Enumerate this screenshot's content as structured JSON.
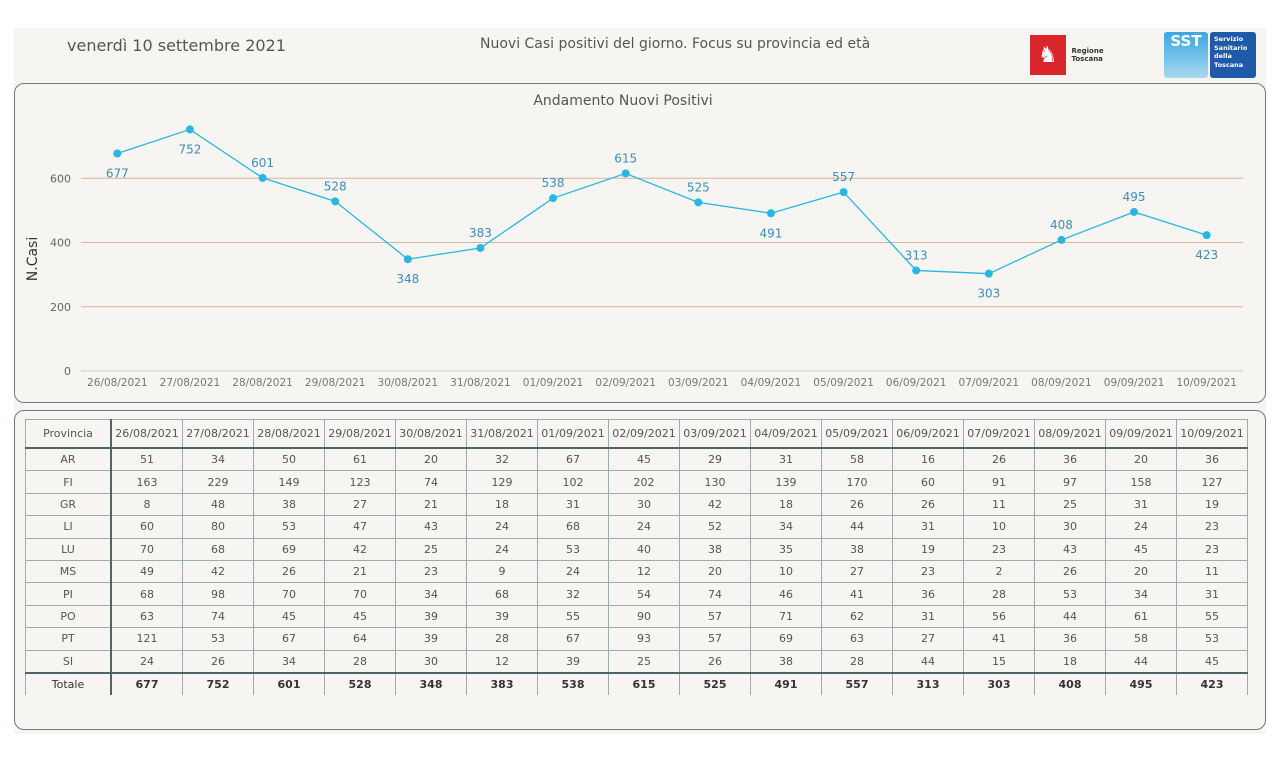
{
  "header": {
    "date": "venerdì 10 settembre 2021",
    "title": "Nuovi Casi positivi del giorno. Focus su provincia ed età",
    "logo_regione": "Regione Toscana",
    "logo_sst_short": "SST",
    "logo_sst_lines": [
      "Servizio",
      "Sanitario",
      "della",
      "Toscana"
    ]
  },
  "chart_data": {
    "type": "line",
    "title": "Andamento Nuovi Positivi",
    "xlabel": "",
    "ylabel": "N.Casi",
    "ylim": [
      0,
      800
    ],
    "yticks": [
      0,
      200,
      400,
      600
    ],
    "grid": true,
    "line_color": "#29b6e0",
    "grid_color": "#d9b49e",
    "label_color": "#3e8cb8",
    "categories": [
      "26/08/2021",
      "27/08/2021",
      "28/08/2021",
      "29/08/2021",
      "30/08/2021",
      "31/08/2021",
      "01/09/2021",
      "02/09/2021",
      "03/09/2021",
      "04/09/2021",
      "05/09/2021",
      "06/09/2021",
      "07/09/2021",
      "08/09/2021",
      "09/09/2021",
      "10/09/2021"
    ],
    "values": [
      677,
      752,
      601,
      528,
      348,
      383,
      538,
      615,
      525,
      491,
      557,
      313,
      303,
      408,
      495,
      423
    ],
    "label_positions": [
      "below",
      "below",
      "above",
      "above",
      "below",
      "above",
      "above",
      "above",
      "above",
      "below",
      "above",
      "above",
      "below",
      "above",
      "above",
      "below"
    ]
  },
  "table": {
    "header_label": "Provincia",
    "dates": [
      "26/08/2021",
      "27/08/2021",
      "28/08/2021",
      "29/08/2021",
      "30/08/2021",
      "31/08/2021",
      "01/09/2021",
      "02/09/2021",
      "03/09/2021",
      "04/09/2021",
      "05/09/2021",
      "06/09/2021",
      "07/09/2021",
      "08/09/2021",
      "09/09/2021",
      "10/09/2021"
    ],
    "rows": [
      {
        "provincia": "AR",
        "values": [
          51,
          34,
          50,
          61,
          20,
          32,
          67,
          45,
          29,
          31,
          58,
          16,
          26,
          36,
          20,
          36
        ]
      },
      {
        "provincia": "FI",
        "values": [
          163,
          229,
          149,
          123,
          74,
          129,
          102,
          202,
          130,
          139,
          170,
          60,
          91,
          97,
          158,
          127
        ]
      },
      {
        "provincia": "GR",
        "values": [
          8,
          48,
          38,
          27,
          21,
          18,
          31,
          30,
          42,
          18,
          26,
          26,
          11,
          25,
          31,
          19
        ]
      },
      {
        "provincia": "LI",
        "values": [
          60,
          80,
          53,
          47,
          43,
          24,
          68,
          24,
          52,
          34,
          44,
          31,
          10,
          30,
          24,
          23
        ]
      },
      {
        "provincia": "LU",
        "values": [
          70,
          68,
          69,
          42,
          25,
          24,
          53,
          40,
          38,
          35,
          38,
          19,
          23,
          43,
          45,
          23
        ]
      },
      {
        "provincia": "MS",
        "values": [
          49,
          42,
          26,
          21,
          23,
          9,
          24,
          12,
          20,
          10,
          27,
          23,
          2,
          26,
          20,
          11
        ]
      },
      {
        "provincia": "PI",
        "values": [
          68,
          98,
          70,
          70,
          34,
          68,
          32,
          54,
          74,
          46,
          41,
          36,
          28,
          53,
          34,
          31
        ]
      },
      {
        "provincia": "PO",
        "values": [
          63,
          74,
          45,
          45,
          39,
          39,
          55,
          90,
          57,
          71,
          62,
          31,
          56,
          44,
          61,
          55
        ]
      },
      {
        "provincia": "PT",
        "values": [
          121,
          53,
          67,
          64,
          39,
          28,
          67,
          93,
          57,
          69,
          63,
          27,
          41,
          36,
          58,
          53
        ]
      },
      {
        "provincia": "SI",
        "values": [
          24,
          26,
          34,
          28,
          30,
          12,
          39,
          25,
          26,
          38,
          28,
          44,
          15,
          18,
          44,
          45
        ]
      }
    ],
    "total_label": "Totale",
    "totals": [
      677,
      752,
      601,
      528,
      348,
      383,
      538,
      615,
      525,
      491,
      557,
      313,
      303,
      408,
      495,
      423
    ]
  }
}
